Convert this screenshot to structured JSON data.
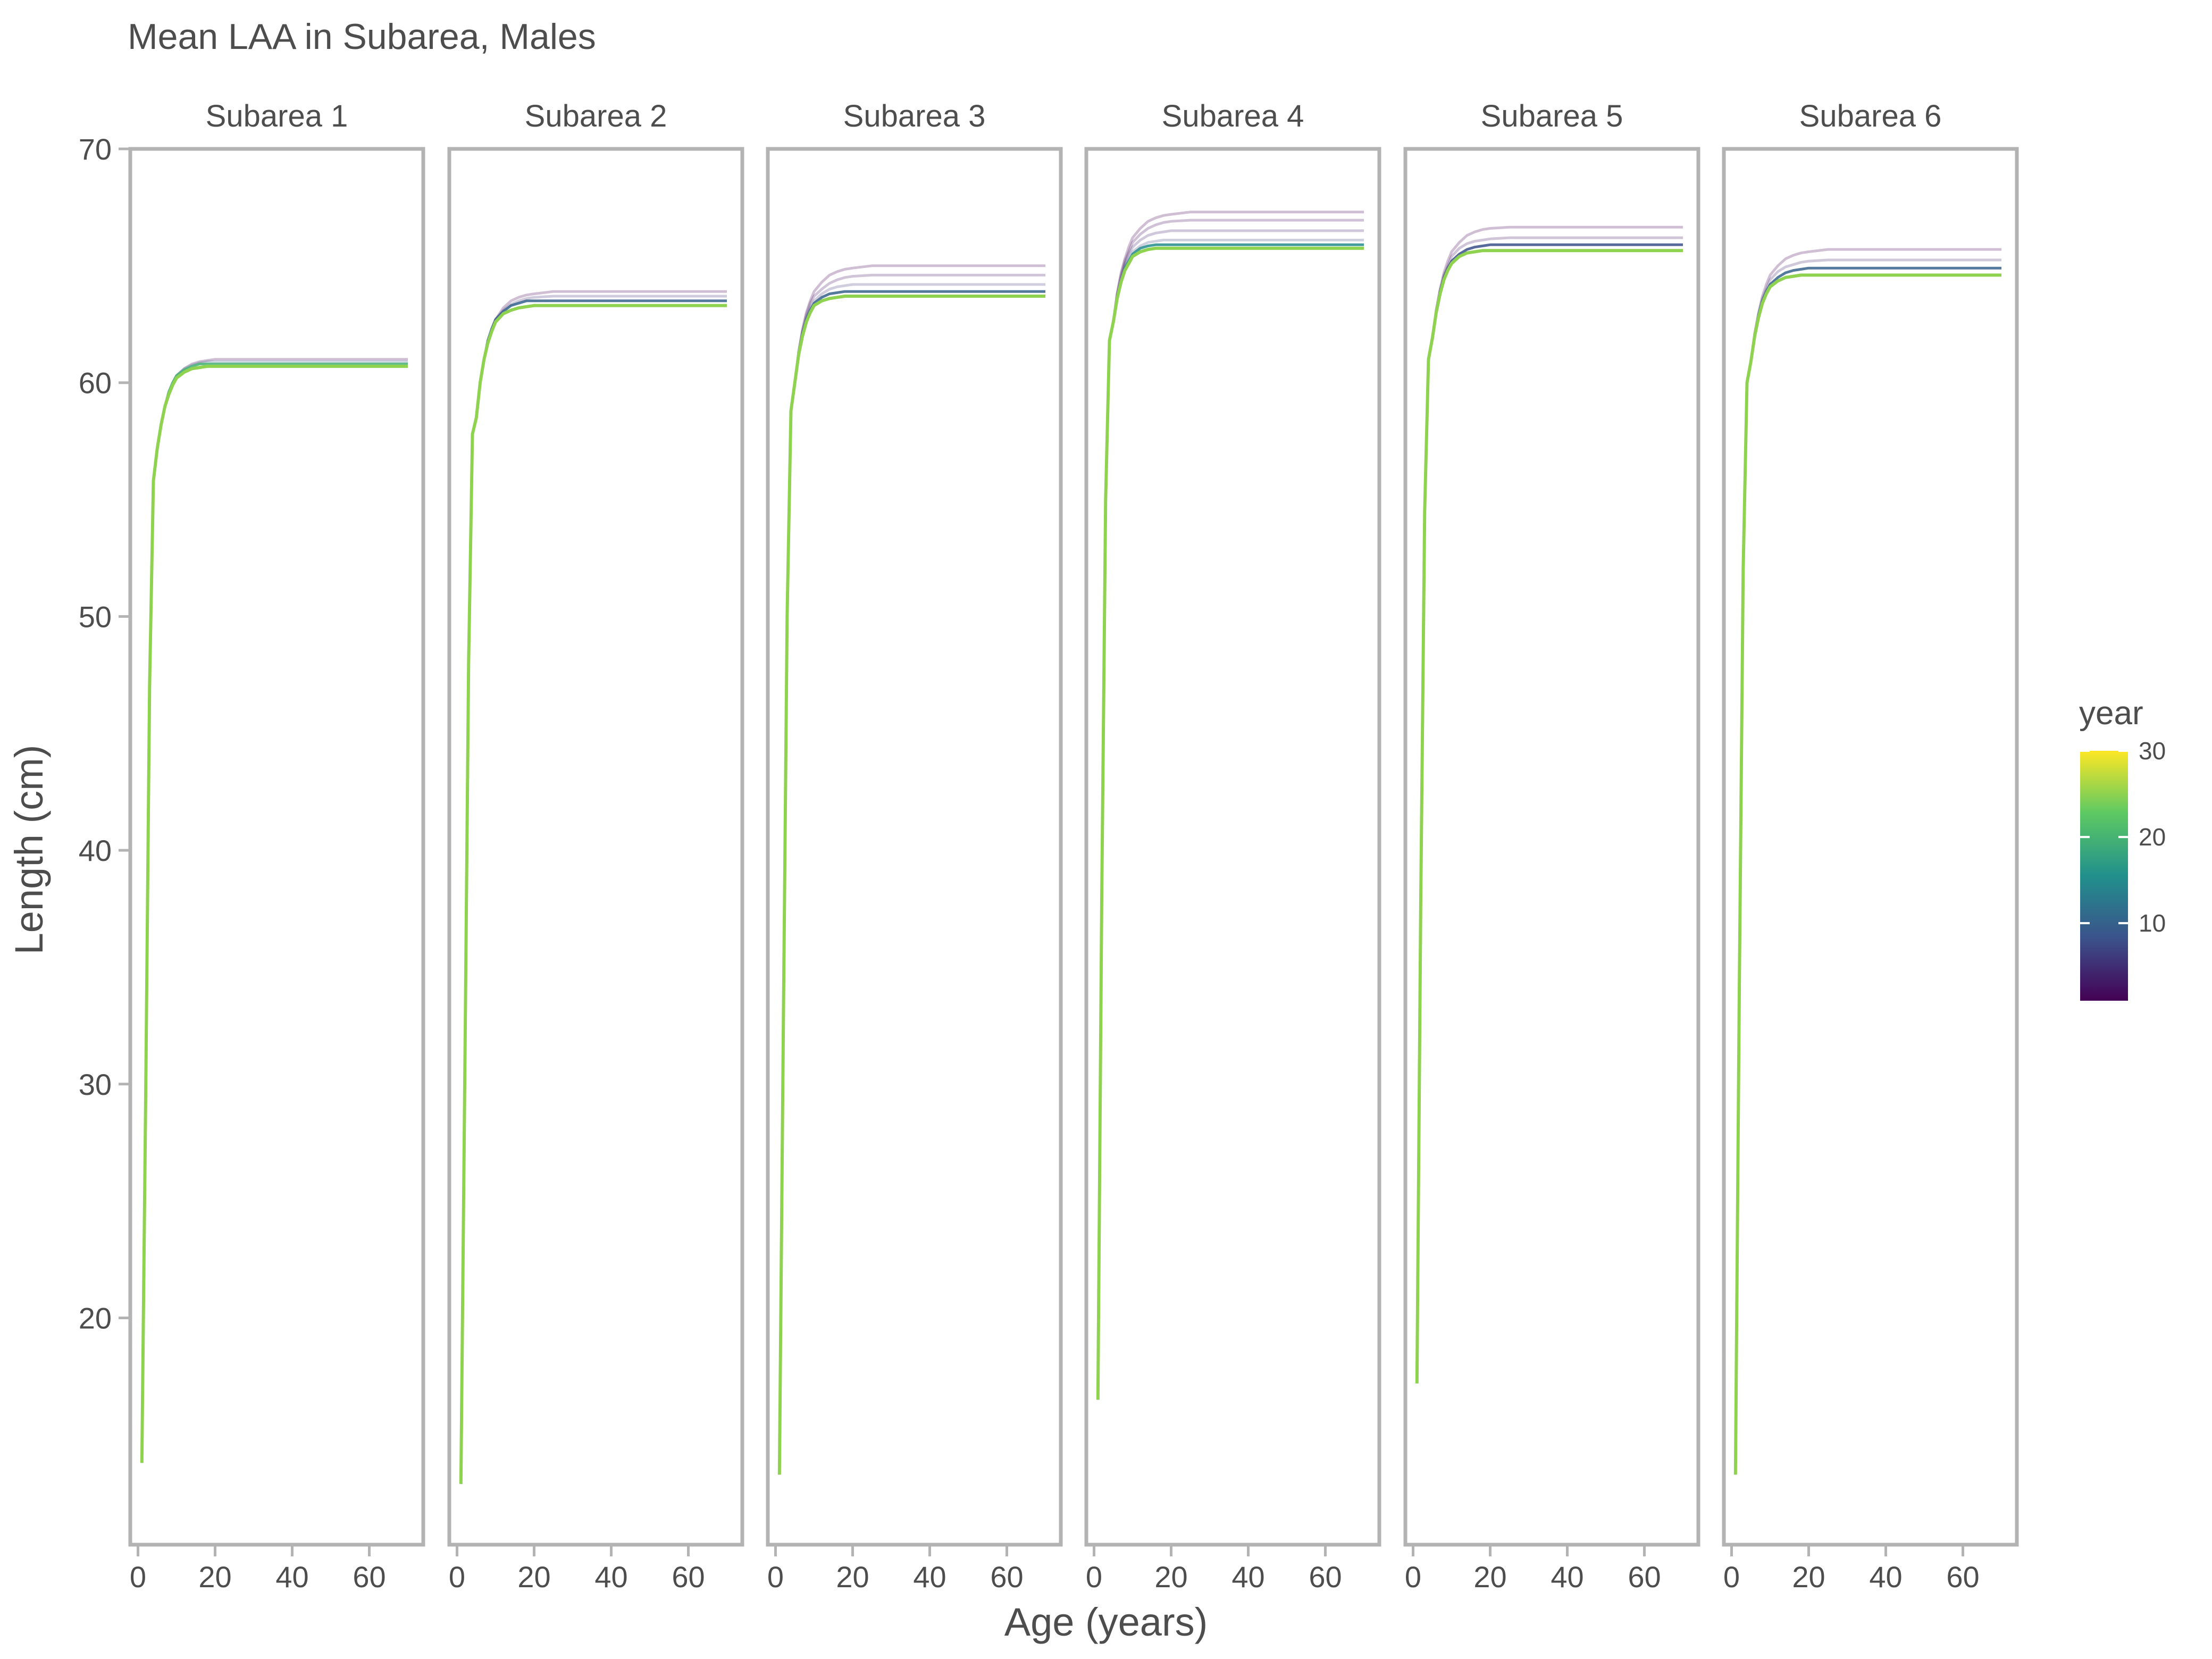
{
  "chart_data": {
    "type": "line",
    "title": "Mean LAA in Subarea, Males",
    "xlabel": "Age (years)",
    "ylabel": "Length (cm)",
    "xlim": [
      -2,
      74
    ],
    "ylim": [
      10.3,
      70
    ],
    "xticks": [
      0,
      20,
      40,
      60
    ],
    "yticks": [
      20,
      30,
      40,
      50,
      60,
      70
    ],
    "grid": false,
    "color_scale": {
      "variable": "year",
      "title": "year",
      "range": [
        1,
        30
      ],
      "ticks": [
        10,
        20,
        30
      ],
      "colormap": "viridis",
      "colors": [
        "#440154",
        "#3b528b",
        "#21908c",
        "#5dc963",
        "#fde725"
      ]
    },
    "legend_position": "right",
    "ages": [
      1,
      2,
      3,
      4,
      5,
      6,
      7,
      8,
      9,
      10,
      12,
      14,
      16,
      18,
      20,
      25,
      30,
      40,
      50,
      60,
      70
    ],
    "panels": [
      {
        "strip": "Subarea 1",
        "series": [
          {
            "year": 1,
            "values": [
              13.8,
              29.5,
              47.0,
              55.8,
              57.2,
              58.2,
              59.0,
              59.6,
              60.0,
              60.3,
              60.6,
              60.8,
              60.9,
              60.95,
              61.0,
              61.0,
              61.0,
              61.0,
              61.0,
              61.0,
              61.0
            ]
          },
          {
            "year": 10,
            "values": [
              13.8,
              29.5,
              47.0,
              55.8,
              57.2,
              58.2,
              59.0,
              59.6,
              60.0,
              60.3,
              60.6,
              60.75,
              60.85,
              60.9,
              60.9,
              60.9,
              60.9,
              60.9,
              60.9,
              60.9,
              60.9
            ]
          },
          {
            "year": 20,
            "values": [
              13.8,
              29.5,
              47.0,
              55.8,
              57.2,
              58.2,
              59.0,
              59.6,
              60.0,
              60.3,
              60.55,
              60.7,
              60.8,
              60.8,
              60.8,
              60.8,
              60.8,
              60.8,
              60.8,
              60.8,
              60.8
            ]
          },
          {
            "year": 25,
            "values": [
              13.8,
              29.5,
              47.0,
              55.8,
              57.2,
              58.2,
              59.0,
              59.5,
              59.9,
              60.2,
              60.45,
              60.6,
              60.65,
              60.7,
              60.7,
              60.7,
              60.7,
              60.7,
              60.7,
              60.7,
              60.7
            ]
          }
        ]
      },
      {
        "strip": "Subarea 2",
        "series": [
          {
            "year": 1,
            "values": [
              12.9,
              30.0,
              48.0,
              57.8,
              58.5,
              60.0,
              61.0,
              61.8,
              62.3,
              62.7,
              63.2,
              63.5,
              63.65,
              63.75,
              63.8,
              63.9,
              63.9,
              63.9,
              63.9,
              63.9,
              63.9
            ]
          },
          {
            "year": 5,
            "values": [
              12.9,
              30.0,
              48.0,
              57.8,
              58.5,
              60.0,
              61.0,
              61.8,
              62.3,
              62.7,
              63.1,
              63.35,
              63.5,
              63.6,
              63.65,
              63.7,
              63.7,
              63.7,
              63.7,
              63.7,
              63.7
            ]
          },
          {
            "year": 10,
            "values": [
              12.9,
              30.0,
              48.0,
              57.8,
              58.5,
              60.0,
              61.0,
              61.8,
              62.3,
              62.7,
              63.05,
              63.3,
              63.4,
              63.5,
              63.5,
              63.5,
              63.5,
              63.5,
              63.5,
              63.5,
              63.5
            ]
          },
          {
            "year": 25,
            "values": [
              12.9,
              30.0,
              48.0,
              57.8,
              58.5,
              60.0,
              61.0,
              61.7,
              62.2,
              62.6,
              62.95,
              63.1,
              63.2,
              63.25,
              63.3,
              63.3,
              63.3,
              63.3,
              63.3,
              63.3,
              63.3
            ]
          }
        ]
      },
      {
        "strip": "Subarea 3",
        "series": [
          {
            "year": 1,
            "values": [
              13.3,
              32.0,
              50.0,
              58.8,
              60.0,
              61.3,
              62.3,
              63.0,
              63.5,
              63.9,
              64.3,
              64.6,
              64.75,
              64.85,
              64.9,
              65.0,
              65.0,
              65.0,
              65.0,
              65.0,
              65.0
            ]
          },
          {
            "year": 3,
            "values": [
              13.3,
              32.0,
              50.0,
              58.8,
              60.0,
              61.3,
              62.2,
              62.9,
              63.4,
              63.7,
              64.0,
              64.25,
              64.4,
              64.5,
              64.55,
              64.6,
              64.6,
              64.6,
              64.6,
              64.6,
              64.6
            ]
          },
          {
            "year": 6,
            "values": [
              13.3,
              32.0,
              50.0,
              58.8,
              60.0,
              61.3,
              62.2,
              62.8,
              63.2,
              63.5,
              63.8,
              64.0,
              64.1,
              64.15,
              64.2,
              64.2,
              64.2,
              64.2,
              64.2,
              64.2,
              64.2
            ]
          },
          {
            "year": 10,
            "values": [
              13.3,
              32.0,
              50.0,
              58.8,
              60.0,
              61.2,
              62.1,
              62.7,
              63.1,
              63.4,
              63.65,
              63.8,
              63.85,
              63.9,
              63.9,
              63.9,
              63.9,
              63.9,
              63.9,
              63.9,
              63.9
            ]
          },
          {
            "year": 25,
            "values": [
              13.3,
              32.0,
              50.0,
              58.8,
              60.0,
              61.2,
              62.0,
              62.6,
              63.0,
              63.3,
              63.5,
              63.6,
              63.65,
              63.7,
              63.7,
              63.7,
              63.7,
              63.7,
              63.7,
              63.7,
              63.7
            ]
          }
        ]
      },
      {
        "strip": "Subarea 4",
        "series": [
          {
            "year": 1,
            "values": [
              16.5,
              38.0,
              55.0,
              61.8,
              62.6,
              63.8,
              64.7,
              65.3,
              65.8,
              66.2,
              66.6,
              66.9,
              67.05,
              67.15,
              67.2,
              67.3,
              67.3,
              67.3,
              67.3,
              67.3,
              67.3
            ]
          },
          {
            "year": 2,
            "values": [
              16.5,
              38.0,
              55.0,
              61.8,
              62.6,
              63.8,
              64.6,
              65.2,
              65.6,
              66.0,
              66.35,
              66.6,
              66.75,
              66.85,
              66.9,
              66.95,
              66.95,
              66.95,
              66.95,
              66.95,
              66.95
            ]
          },
          {
            "year": 4,
            "values": [
              16.5,
              38.0,
              55.0,
              61.8,
              62.6,
              63.7,
              64.5,
              65.1,
              65.5,
              65.8,
              66.1,
              66.3,
              66.4,
              66.45,
              66.5,
              66.5,
              66.5,
              66.5,
              66.5,
              66.5,
              66.5
            ]
          },
          {
            "year": 7,
            "values": [
              16.5,
              38.0,
              55.0,
              61.8,
              62.6,
              63.7,
              64.4,
              65.0,
              65.3,
              65.6,
              65.85,
              66.0,
              66.05,
              66.1,
              66.1,
              66.1,
              66.1,
              66.1,
              66.1,
              66.1,
              66.1
            ]
          },
          {
            "year": 15,
            "values": [
              16.5,
              38.0,
              55.0,
              61.8,
              62.6,
              63.6,
              64.3,
              64.9,
              65.2,
              65.5,
              65.75,
              65.85,
              65.9,
              65.9,
              65.9,
              65.9,
              65.9,
              65.9,
              65.9,
              65.9,
              65.9
            ]
          },
          {
            "year": 25,
            "values": [
              16.5,
              38.0,
              55.0,
              61.8,
              62.6,
              63.6,
              64.3,
              64.8,
              65.1,
              65.4,
              65.6,
              65.7,
              65.75,
              65.75,
              65.75,
              65.75,
              65.75,
              65.75,
              65.75,
              65.75,
              65.75
            ]
          }
        ]
      },
      {
        "strip": "Subarea 5",
        "series": [
          {
            "year": 1,
            "values": [
              17.2,
              38.0,
              54.5,
              61.0,
              61.9,
              63.1,
              64.0,
              64.7,
              65.2,
              65.6,
              66.0,
              66.3,
              66.45,
              66.55,
              66.6,
              66.65,
              66.65,
              66.65,
              66.65,
              66.65,
              66.65
            ]
          },
          {
            "year": 3,
            "values": [
              17.2,
              38.0,
              54.5,
              61.0,
              61.9,
              63.1,
              63.9,
              64.6,
              65.0,
              65.4,
              65.75,
              65.95,
              66.05,
              66.1,
              66.15,
              66.2,
              66.2,
              66.2,
              66.2,
              66.2,
              66.2
            ]
          },
          {
            "year": 8,
            "values": [
              17.2,
              38.0,
              54.5,
              61.0,
              61.9,
              63.0,
              63.9,
              64.5,
              64.9,
              65.2,
              65.5,
              65.7,
              65.8,
              65.85,
              65.9,
              65.9,
              65.9,
              65.9,
              65.9,
              65.9,
              65.9
            ]
          },
          {
            "year": 25,
            "values": [
              17.2,
              38.0,
              54.5,
              61.0,
              61.9,
              63.0,
              63.8,
              64.4,
              64.8,
              65.1,
              65.4,
              65.55,
              65.6,
              65.65,
              65.65,
              65.65,
              65.65,
              65.65,
              65.65,
              65.65,
              65.65
            ]
          }
        ]
      },
      {
        "strip": "Subarea 6",
        "series": [
          {
            "year": 1,
            "values": [
              13.3,
              34.0,
              52.0,
              60.0,
              60.9,
              62.1,
              63.0,
              63.7,
              64.2,
              64.6,
              65.0,
              65.3,
              65.45,
              65.55,
              65.6,
              65.7,
              65.7,
              65.7,
              65.7,
              65.7,
              65.7
            ]
          },
          {
            "year": 4,
            "values": [
              13.3,
              34.0,
              52.0,
              60.0,
              60.9,
              62.1,
              62.9,
              63.6,
              64.0,
              64.4,
              64.75,
              64.95,
              65.05,
              65.15,
              65.2,
              65.25,
              65.25,
              65.25,
              65.25,
              65.25,
              65.25
            ]
          },
          {
            "year": 10,
            "values": [
              13.3,
              34.0,
              52.0,
              60.0,
              60.9,
              62.0,
              62.9,
              63.5,
              63.9,
              64.2,
              64.5,
              64.7,
              64.8,
              64.85,
              64.9,
              64.9,
              64.9,
              64.9,
              64.9,
              64.9,
              64.9
            ]
          },
          {
            "year": 25,
            "values": [
              13.3,
              34.0,
              52.0,
              60.0,
              60.9,
              62.0,
              62.8,
              63.4,
              63.8,
              64.1,
              64.35,
              64.5,
              64.55,
              64.6,
              64.6,
              64.6,
              64.6,
              64.6,
              64.6,
              64.6,
              64.6
            ]
          }
        ]
      }
    ]
  }
}
